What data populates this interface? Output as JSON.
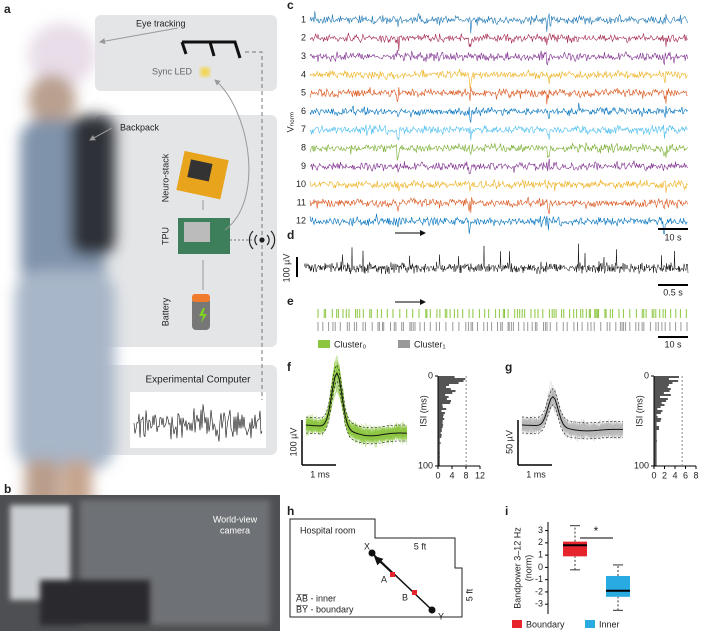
{
  "panel_labels": [
    "a",
    "b",
    "c",
    "d",
    "e",
    "f",
    "g",
    "h",
    "i"
  ],
  "a": {
    "eye_tracking": "Eye tracking",
    "sync_led": "Sync LED",
    "backpack": "Backpack",
    "neuro_stack": "Neuro-stack",
    "tpu": "TPU",
    "battery": "Battery",
    "computer": "Experimental Computer"
  },
  "b": {
    "camera": [
      "World-view",
      "camera"
    ]
  },
  "c": {
    "ylabel": "Vₙₒᵣₘ",
    "channels": [
      "1",
      "2",
      "3",
      "4",
      "5",
      "6",
      "7",
      "8",
      "9",
      "10",
      "11",
      "12"
    ],
    "colors": [
      "#1f77b4",
      "#a2264b",
      "#7e2f8e",
      "#edb120",
      "#d95319",
      "#0072bd",
      "#4dbeee",
      "#77ac30",
      "#7e2f8e",
      "#edb120",
      "#d95319",
      "#0072bd"
    ],
    "scale": "10 s"
  },
  "d": {
    "scale_v": "100 µV",
    "scale_t": "0.5 s"
  },
  "e": {
    "legend": [
      {
        "name": "Cluster₀",
        "color": "#8cc63f"
      },
      {
        "name": "Cluster₁",
        "color": "#999999"
      }
    ],
    "scale": "10 s"
  },
  "f": {
    "scale_v": "100 µV",
    "scale_t": "1 ms",
    "color": "#8cc63f",
    "isi_label": "ISI (ms)",
    "isi_yticks": [
      0,
      100
    ],
    "isi_xticks": [
      0,
      4,
      8,
      12
    ]
  },
  "g": {
    "scale_v": "50 µV",
    "scale_t": "1 ms",
    "color": "#b5b5b5",
    "isi_label": "ISI (ms)",
    "isi_yticks": [
      0,
      100
    ],
    "isi_xticks": [
      0,
      2,
      4,
      6,
      8
    ]
  },
  "h": {
    "room": "Hospital room",
    "dim_top": "5 ft",
    "dim_side": "5 ft",
    "points": [
      "X",
      "A",
      "B",
      "Y"
    ],
    "legend": [
      "A̅B̅ - inner",
      "B̅Y̅ - boundary"
    ]
  },
  "chart_data": {
    "type": "box",
    "ylabel": [
      "Bandpower 3–12 Hz",
      "(norm)"
    ],
    "ylim": [
      -3.8,
      3.7
    ],
    "yticks": [
      3,
      2,
      1,
      0,
      -1,
      -2,
      -3
    ],
    "annotation": "*",
    "series": [
      {
        "name": "Boundary",
        "color": "#e5252b",
        "stats": {
          "min": -0.2,
          "q1": 0.9,
          "median": 1.8,
          "q3": 2.1,
          "max": 3.4
        }
      },
      {
        "name": "Inner",
        "color": "#29abe2",
        "stats": {
          "min": -3.5,
          "q1": -2.4,
          "median": -1.9,
          "q3": -0.7,
          "max": 0.2
        }
      }
    ]
  }
}
